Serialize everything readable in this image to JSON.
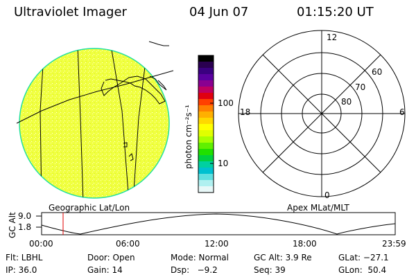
{
  "header": {
    "instrument": "Ultraviolet Imager",
    "date": "04 Jun 07",
    "time": "01:15:20 UT"
  },
  "colorbar": {
    "label": "photon cm⁻²s⁻¹",
    "tick_labels": [
      "100",
      "10"
    ],
    "colors": [
      "#000000",
      "#2a0050",
      "#3a0080",
      "#5a00a0",
      "#8a0090",
      "#c00060",
      "#e00010",
      "#ff4000",
      "#ff8000",
      "#ffb000",
      "#ffd800",
      "#ffff00",
      "#e0ff00",
      "#a8ff00",
      "#60f000",
      "#20e000",
      "#00d040",
      "#00d0a0",
      "#00c0d0",
      "#60e0e0",
      "#b0f0f0",
      "#e8f8f8"
    ]
  },
  "left_panel": {
    "caption": "Geographic Lat/Lon",
    "fill_color": "#f0ff40",
    "limb_color": "#20e0a0"
  },
  "right_panel": {
    "caption": "Apex MLat/MLT",
    "mlt_labels": {
      "top": "12",
      "left": "18",
      "right": "6",
      "bottom": "0"
    },
    "mlat_labels": [
      "60",
      "70",
      "80"
    ]
  },
  "timeline": {
    "y_label": "GC Alt",
    "y_ticks": [
      "9.0",
      "1.8"
    ],
    "x_ticks": [
      "00:00",
      "06:00",
      "12:00",
      "18:00",
      "23:59"
    ],
    "marker_color": "#e00000"
  },
  "info": {
    "flt": "Flt: LBHL",
    "door": "Door: Open",
    "mode": "Mode: Normal",
    "gc_alt": "GC Alt: 3.9 Re",
    "glat": "GLat: −27.1",
    "ip": "IP: 36.0",
    "gain": "Gain: 14",
    "dsp": "Dsp:   −9.2",
    "seq": "Seq: 39",
    "glon": "GLon:  50.4"
  }
}
